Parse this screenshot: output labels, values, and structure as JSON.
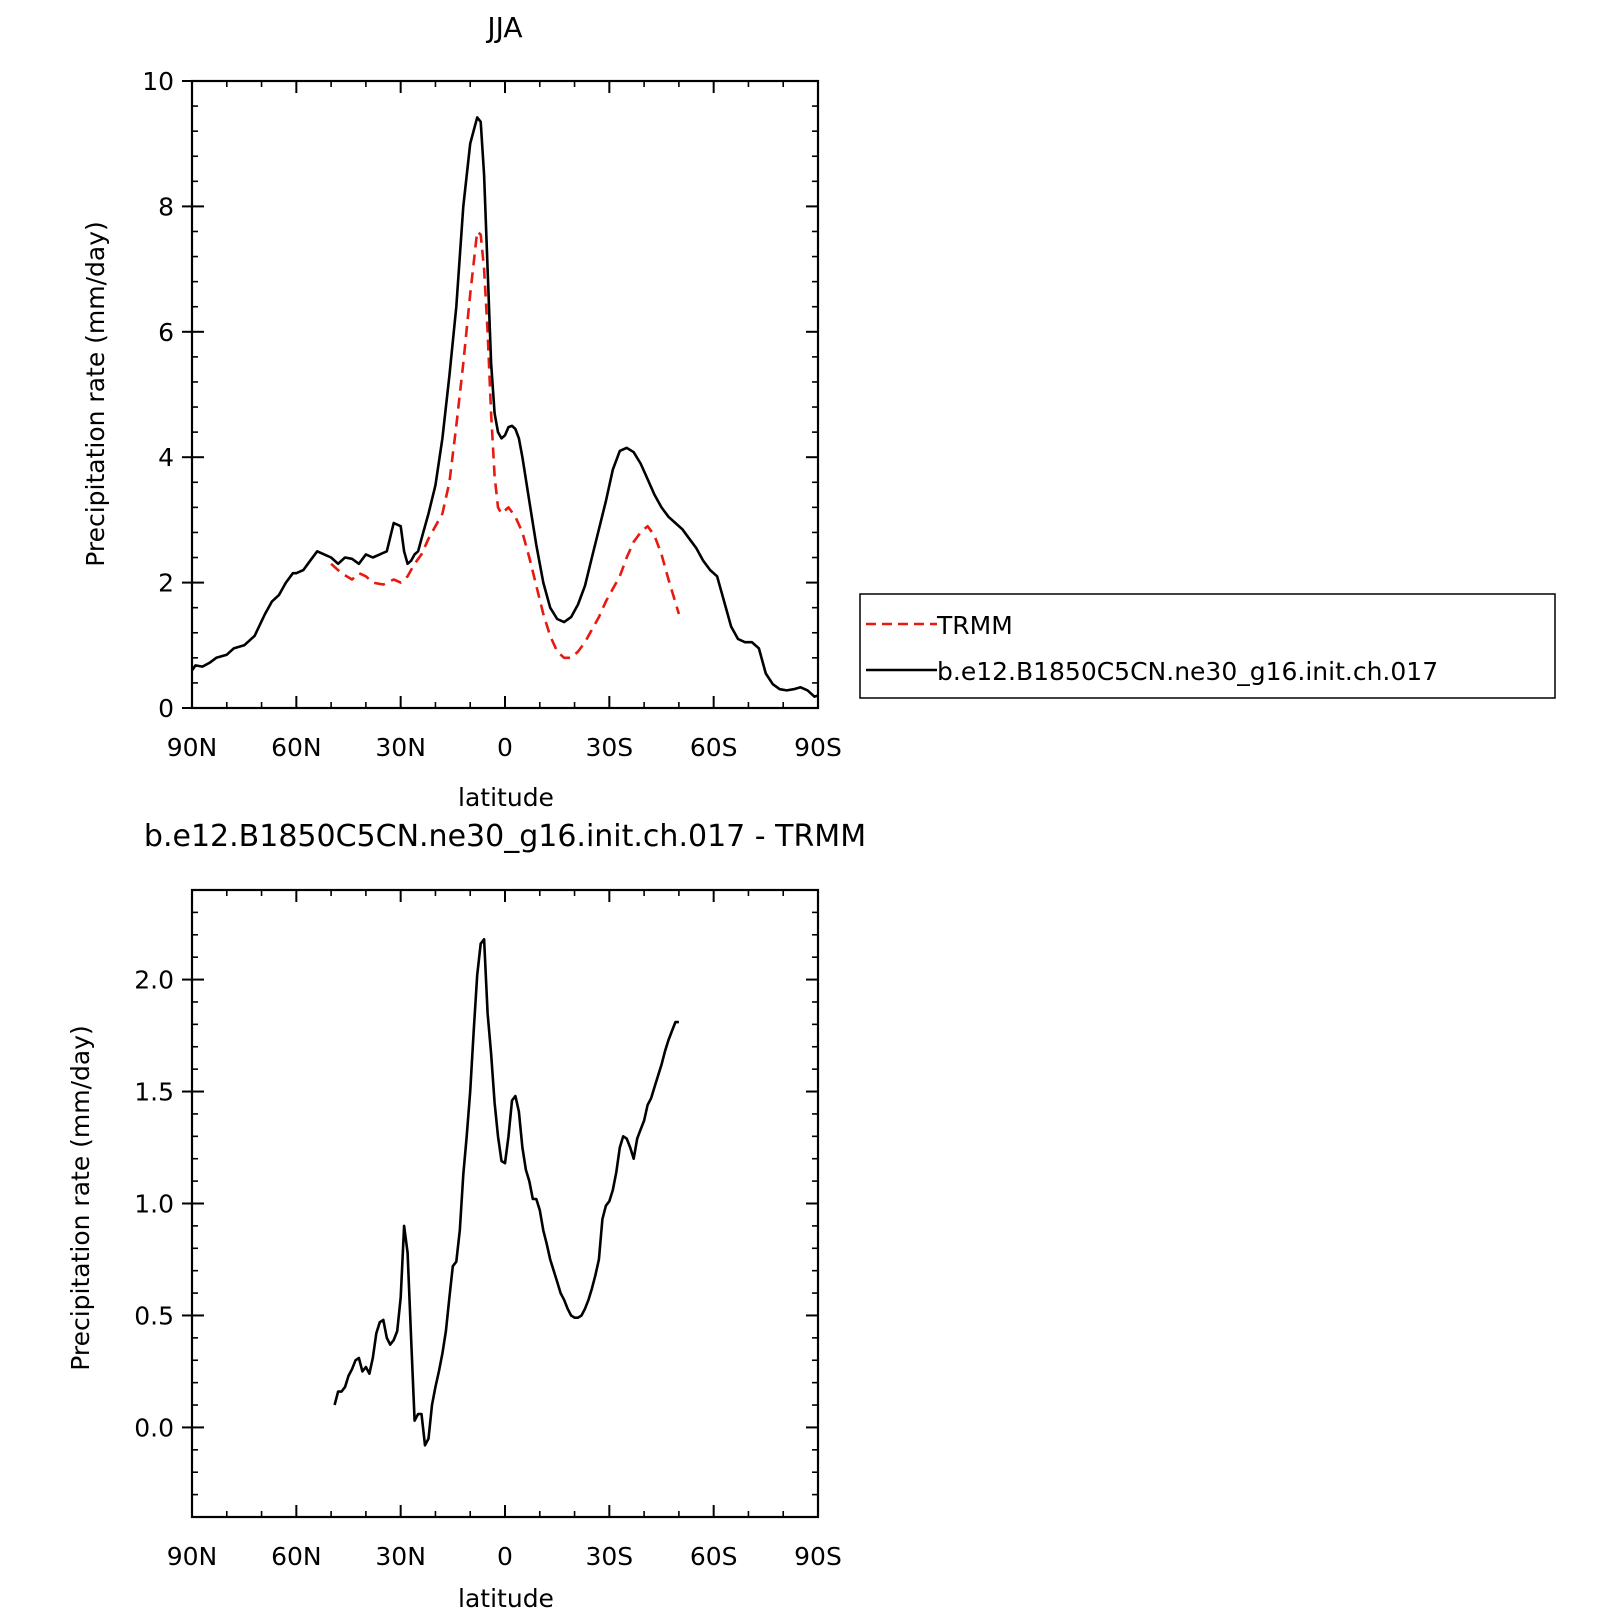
{
  "chart_data": [
    {
      "type": "line",
      "title": "JJA",
      "xlabel": "latitude",
      "ylabel": "Precipitation rate (mm/day)",
      "xlim": [
        90,
        -90
      ],
      "ylim": [
        0,
        10
      ],
      "x_ticks": [
        90,
        60,
        30,
        0,
        -30,
        -60,
        -90
      ],
      "x_tick_labels": [
        "90N",
        "60N",
        "30N",
        "0",
        "30S",
        "60S",
        "90S"
      ],
      "y_ticks": [
        0,
        2,
        4,
        6,
        8,
        10
      ],
      "y_tick_labels": [
        "0",
        "2",
        "4",
        "6",
        "8",
        "10"
      ],
      "legend_position": "right",
      "series": [
        {
          "name": "TRMM",
          "color": "#e8190f",
          "dash": true,
          "x": [
            50,
            47,
            44,
            42,
            40,
            38,
            35,
            32,
            30,
            28,
            26,
            24,
            22,
            20,
            18,
            16,
            14,
            12,
            10,
            8,
            7,
            6,
            5,
            4,
            3,
            2,
            1,
            0,
            -1,
            -3,
            -5,
            -7,
            -9,
            -11,
            -13,
            -15,
            -17,
            -19,
            -21,
            -23,
            -25,
            -27,
            -29,
            -31,
            -33,
            -35,
            -37,
            -39,
            -41,
            -43,
            -45,
            -47,
            -50
          ],
          "y": [
            2.3,
            2.15,
            2.05,
            2.15,
            2.1,
            2.0,
            1.97,
            2.05,
            2.0,
            2.1,
            2.3,
            2.45,
            2.7,
            2.9,
            3.1,
            3.6,
            4.5,
            5.5,
            6.6,
            7.6,
            7.55,
            7.0,
            6.0,
            4.7,
            3.7,
            3.2,
            3.1,
            3.15,
            3.2,
            3.05,
            2.8,
            2.4,
            1.95,
            1.5,
            1.15,
            0.9,
            0.8,
            0.8,
            0.9,
            1.05,
            1.25,
            1.45,
            1.7,
            1.9,
            2.1,
            2.4,
            2.65,
            2.8,
            2.9,
            2.75,
            2.45,
            2.05,
            1.5
          ]
        },
        {
          "name": "b.e12.B1850C5CN.ne30_g16.init.ch.017",
          "color": "#000000",
          "dash": false,
          "x": [
            90,
            89,
            87,
            85,
            83,
            80,
            78,
            75,
            72,
            69,
            67,
            65,
            63,
            61,
            60,
            58,
            56,
            54,
            52,
            50,
            48,
            46,
            44,
            42,
            40,
            38,
            36,
            34,
            32,
            30,
            29,
            28,
            27,
            26,
            25,
            24,
            22,
            20,
            18,
            16,
            14,
            12,
            10,
            8,
            7,
            6,
            5,
            4,
            3,
            2,
            1,
            0,
            -1,
            -2,
            -3,
            -4,
            -5,
            -7,
            -9,
            -11,
            -13,
            -15,
            -17,
            -19,
            -21,
            -23,
            -25,
            -27,
            -29,
            -31,
            -33,
            -35,
            -37,
            -39,
            -41,
            -43,
            -45,
            -47,
            -49,
            -51,
            -53,
            -55,
            -57,
            -59,
            -61,
            -63,
            -65,
            -67,
            -69,
            -71,
            -73,
            -75,
            -77,
            -79,
            -81,
            -83,
            -85,
            -87,
            -89,
            -90
          ],
          "y": [
            0.6,
            0.68,
            0.66,
            0.72,
            0.8,
            0.85,
            0.95,
            1.0,
            1.15,
            1.5,
            1.7,
            1.8,
            2.0,
            2.15,
            2.15,
            2.2,
            2.35,
            2.5,
            2.45,
            2.4,
            2.3,
            2.4,
            2.38,
            2.3,
            2.45,
            2.4,
            2.45,
            2.5,
            2.95,
            2.9,
            2.5,
            2.3,
            2.35,
            2.45,
            2.5,
            2.7,
            3.1,
            3.55,
            4.3,
            5.3,
            6.4,
            8.0,
            9.0,
            9.42,
            9.35,
            8.5,
            7.0,
            5.5,
            4.7,
            4.4,
            4.3,
            4.35,
            4.48,
            4.5,
            4.45,
            4.3,
            4.0,
            3.3,
            2.6,
            2.0,
            1.6,
            1.42,
            1.37,
            1.45,
            1.65,
            1.95,
            2.4,
            2.85,
            3.3,
            3.8,
            4.1,
            4.15,
            4.08,
            3.9,
            3.65,
            3.4,
            3.2,
            3.05,
            2.95,
            2.85,
            2.7,
            2.55,
            2.35,
            2.2,
            2.1,
            1.7,
            1.3,
            1.1,
            1.05,
            1.05,
            0.95,
            0.55,
            0.38,
            0.3,
            0.28,
            0.3,
            0.33,
            0.28,
            0.18,
            0.2
          ]
        }
      ]
    },
    {
      "type": "line",
      "title": "b.e12.B1850C5CN.ne30_g16.init.ch.017 - TRMM",
      "xlabel": "latitude",
      "ylabel": "Precipitation rate (mm/day)",
      "xlim": [
        90,
        -90
      ],
      "ylim": [
        -0.4,
        2.4
      ],
      "x_ticks": [
        90,
        60,
        30,
        0,
        -30,
        -60,
        -90
      ],
      "x_tick_labels": [
        "90N",
        "60N",
        "30N",
        "0",
        "30S",
        "60S",
        "90S"
      ],
      "y_ticks": [
        0.0,
        0.5,
        1.0,
        1.5,
        2.0
      ],
      "y_tick_labels": [
        "0.0",
        "0.5",
        "1.0",
        "1.5",
        "2.0"
      ],
      "series": [
        {
          "color": "#000000",
          "dash": false,
          "x": [
            49,
            48,
            47,
            46,
            45,
            44,
            43,
            42,
            41,
            40,
            39,
            38,
            37,
            36,
            35,
            34,
            33,
            32,
            31,
            30,
            29,
            28,
            27,
            26,
            25,
            24,
            23,
            22,
            21,
            20,
            19,
            18,
            17,
            16,
            15,
            14,
            13,
            12,
            11,
            10,
            9,
            8,
            7,
            6,
            5,
            4,
            3,
            2,
            1,
            0,
            -1,
            -2,
            -3,
            -4,
            -5,
            -6,
            -7,
            -8,
            -9,
            -10,
            -11,
            -12,
            -13,
            -14,
            -15,
            -16,
            -17,
            -18,
            -19,
            -20,
            -21,
            -22,
            -23,
            -24,
            -25,
            -26,
            -27,
            -28,
            -29,
            -30,
            -31,
            -32,
            -33,
            -34,
            -35,
            -36,
            -37,
            -38,
            -39,
            -40,
            -41,
            -42,
            -43,
            -44,
            -45,
            -46,
            -47,
            -48,
            -49,
            -50
          ],
          "y": [
            0.1,
            0.16,
            0.16,
            0.18,
            0.23,
            0.26,
            0.3,
            0.31,
            0.25,
            0.27,
            0.24,
            0.31,
            0.42,
            0.47,
            0.48,
            0.4,
            0.37,
            0.39,
            0.43,
            0.58,
            0.9,
            0.78,
            0.4,
            0.03,
            0.06,
            0.06,
            -0.08,
            -0.05,
            0.1,
            0.18,
            0.25,
            0.33,
            0.43,
            0.58,
            0.72,
            0.74,
            0.88,
            1.13,
            1.3,
            1.5,
            1.77,
            2.02,
            2.16,
            2.18,
            1.85,
            1.67,
            1.45,
            1.3,
            1.19,
            1.18,
            1.3,
            1.46,
            1.48,
            1.41,
            1.25,
            1.15,
            1.1,
            1.02,
            1.02,
            0.97,
            0.88,
            0.82,
            0.75,
            0.7,
            0.65,
            0.6,
            0.57,
            0.53,
            0.5,
            0.49,
            0.49,
            0.5,
            0.53,
            0.57,
            0.62,
            0.68,
            0.75,
            0.93,
            0.99,
            1.01,
            1.06,
            1.14,
            1.25,
            1.3,
            1.29,
            1.25,
            1.2,
            1.29,
            1.33,
            1.37,
            1.44,
            1.47,
            1.52,
            1.57,
            1.62,
            1.68,
            1.73,
            1.77,
            1.81,
            1.81
          ]
        }
      ]
    }
  ]
}
